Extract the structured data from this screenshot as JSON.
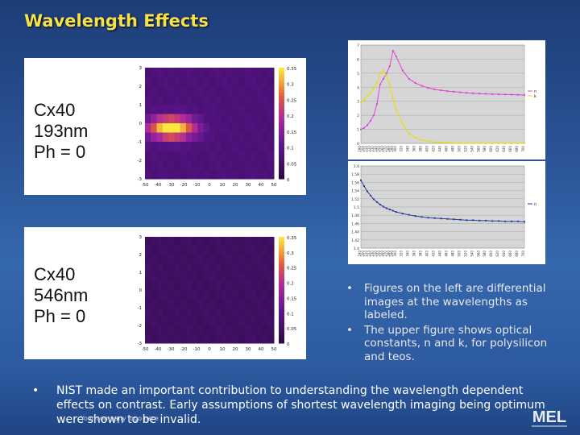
{
  "slide": {
    "title": "Wavelength Effects",
    "footer_small": "Your company logo here"
  },
  "panels": [
    {
      "label_lines": [
        "Cx40",
        "193nm",
        "Ph = 0"
      ],
      "x_ticks": [
        "-50",
        "-40",
        "-30",
        "-20",
        "-10",
        "0",
        "10",
        "20",
        "30",
        "40",
        "50"
      ],
      "y_ticks": [
        "3",
        "2",
        "1",
        "0",
        "-1",
        "-2",
        "-3"
      ],
      "colorbar_ticks": [
        "0.35",
        "0.3",
        "0.25",
        "0.2",
        "0.15",
        "0.1",
        "0.05",
        "0"
      ]
    },
    {
      "label_lines": [
        "Cx40",
        "546nm",
        "Ph = 0"
      ],
      "x_ticks": [
        "-50",
        "-40",
        "-30",
        "-20",
        "-10",
        "0",
        "10",
        "20",
        "30",
        "40",
        "50"
      ],
      "y_ticks": [
        "3",
        "2",
        "1",
        "0",
        "-1",
        "-2",
        "-3"
      ],
      "colorbar_ticks": [
        "0.35",
        "0.3",
        "0.25",
        "0.2",
        "0.15",
        "0.1",
        "0.05",
        "0"
      ]
    }
  ],
  "chart_data": [
    {
      "type": "line",
      "ylim": [
        0,
        7
      ],
      "y_ticks": [
        "0",
        "1",
        "2",
        "3",
        "4",
        "5",
        "6",
        "7"
      ],
      "x": [
        190,
        200,
        210,
        220,
        230,
        240,
        250,
        260,
        270,
        280,
        290,
        300,
        320,
        340,
        360,
        380,
        400,
        420,
        440,
        460,
        480,
        500,
        520,
        540,
        560,
        580,
        600,
        620,
        640,
        660,
        680,
        700
      ],
      "series": [
        {
          "name": "n",
          "color": "#e040e0",
          "values": [
            1.0,
            1.1,
            1.3,
            1.6,
            2.0,
            2.8,
            4.2,
            4.6,
            5.0,
            5.5,
            6.6,
            6.2,
            5.2,
            4.6,
            4.3,
            4.1,
            3.95,
            3.85,
            3.78,
            3.72,
            3.68,
            3.64,
            3.6,
            3.57,
            3.55,
            3.53,
            3.51,
            3.5,
            3.48,
            3.47,
            3.46,
            3.45
          ]
        },
        {
          "name": "k",
          "color": "#e6e000",
          "values": [
            2.9,
            3.1,
            3.4,
            3.6,
            3.9,
            4.3,
            5.0,
            5.2,
            4.8,
            4.2,
            3.2,
            2.4,
            1.4,
            0.7,
            0.4,
            0.25,
            0.15,
            0.1,
            0.07,
            0.05,
            0.03,
            0.02,
            0.02,
            0.01,
            0.01,
            0.01,
            0.01,
            0.01,
            0.01,
            0.01,
            0.01,
            0.01
          ]
        }
      ]
    },
    {
      "type": "line",
      "ylim": [
        1.4,
        1.6
      ],
      "y_ticks": [
        "1.4",
        "1.42",
        "1.44",
        "1.46",
        "1.48",
        "1.5",
        "1.52",
        "1.54",
        "1.56",
        "1.58",
        "1.6"
      ],
      "x": [
        190,
        200,
        210,
        220,
        230,
        240,
        250,
        260,
        270,
        280,
        290,
        300,
        320,
        340,
        360,
        380,
        400,
        420,
        440,
        460,
        480,
        500,
        520,
        540,
        560,
        580,
        600,
        620,
        640,
        660,
        680,
        700
      ],
      "series": [
        {
          "name": "n",
          "color": "#2a3a9a",
          "values": [
            1.565,
            1.551,
            1.538,
            1.528,
            1.519,
            1.512,
            1.506,
            1.501,
            1.497,
            1.494,
            1.491,
            1.488,
            1.484,
            1.481,
            1.478,
            1.476,
            1.474,
            1.473,
            1.472,
            1.471,
            1.47,
            1.469,
            1.468,
            1.468,
            1.467,
            1.467,
            1.466,
            1.466,
            1.465,
            1.465,
            1.465,
            1.464
          ]
        }
      ]
    }
  ],
  "bullets_right": [
    "Figures on the left are differential images at the wavelengths as labeled.",
    "The upper figure shows optical constants, n and k, for polysilicon and teos."
  ],
  "bullet_main": "NIST made an important contribution to understanding the wavelength dependent effects on contrast. Early assumptions of shortest wavelength imaging being optimum were shown to be invalid.",
  "logo_text": "MEL"
}
